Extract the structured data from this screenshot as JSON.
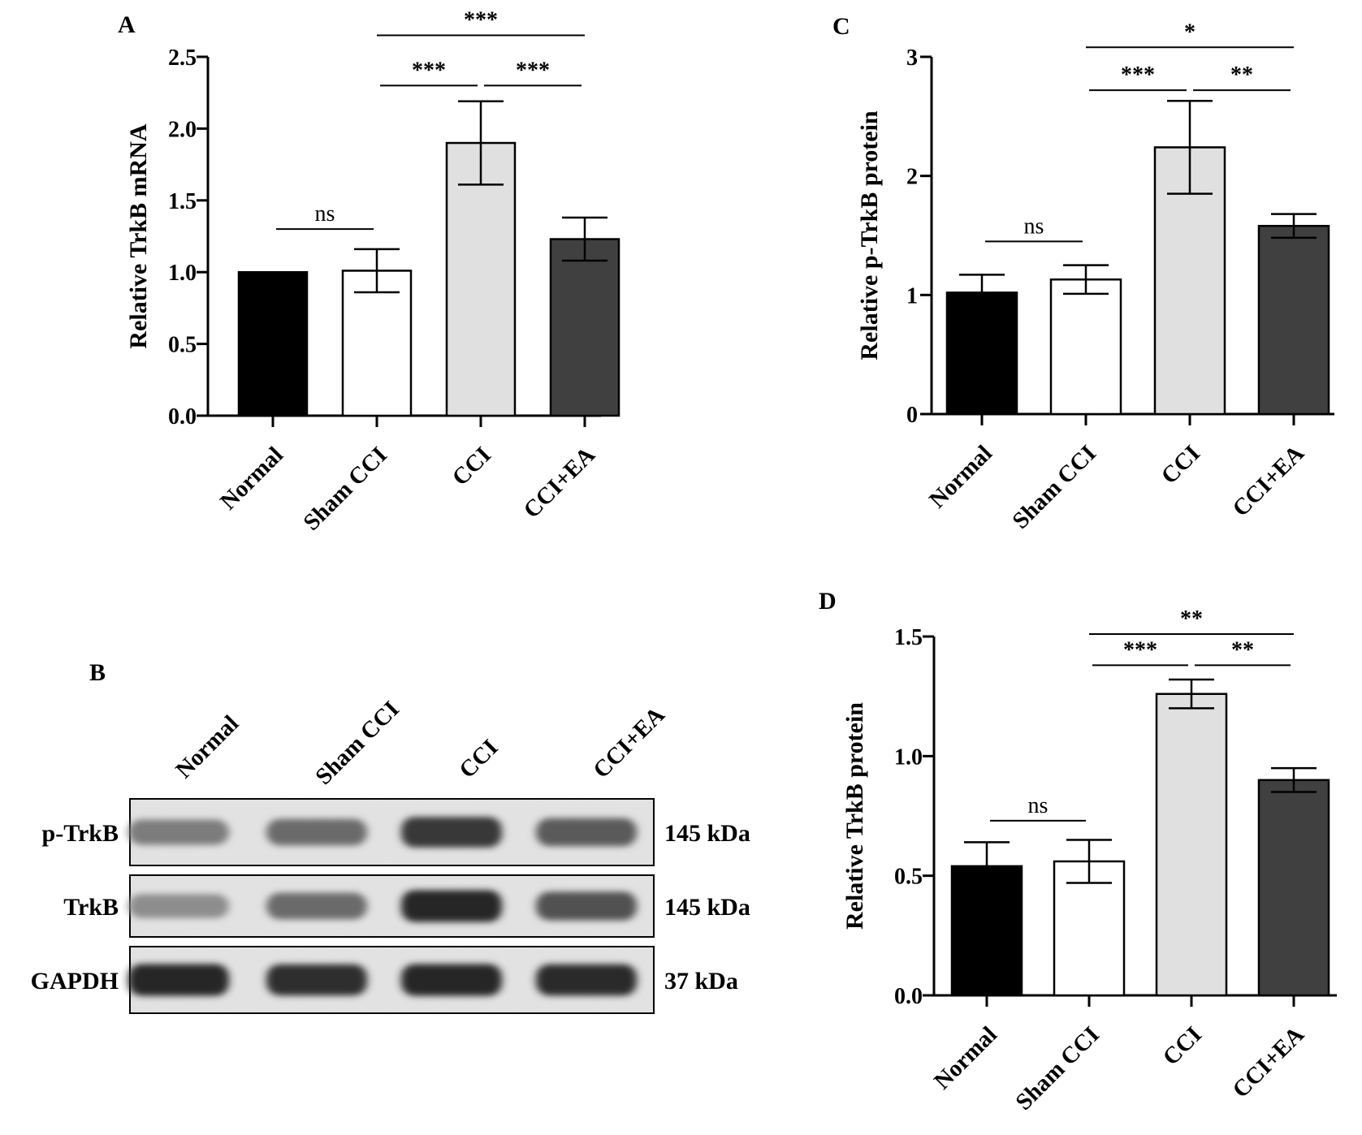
{
  "panels": {
    "A": {
      "letter": "A",
      "ylabel": "Relative TrkB mRNA",
      "ticks": [
        "0.0",
        "0.5",
        "1.0",
        "1.5",
        "2.0",
        "2.5"
      ]
    },
    "B": {
      "letter": "B",
      "lanes": [
        "Normal",
        "Sham CCI",
        "CCI",
        "CCI+EA"
      ],
      "rows": [
        {
          "label": "p-TrkB",
          "size": "145 kDa",
          "intensity": [
            0.45,
            0.55,
            0.85,
            0.65
          ]
        },
        {
          "label": "TrkB",
          "size": "145 kDa",
          "intensity": [
            0.35,
            0.55,
            0.95,
            0.7
          ]
        },
        {
          "label": "GAPDH",
          "size": "37 kDa",
          "intensity": [
            0.95,
            0.9,
            0.95,
            0.92
          ]
        }
      ]
    },
    "C": {
      "letter": "C",
      "ylabel": "Relative p-TrkB protein",
      "ticks": [
        "0",
        "1",
        "2",
        "3"
      ]
    },
    "D": {
      "letter": "D",
      "ylabel": "Relative TrkB protein",
      "ticks": [
        "0.0",
        "0.5",
        "1.0",
        "1.5"
      ]
    }
  },
  "colors": {
    "Normal": "#000000",
    "Sham CCI": "#ffffff",
    "CCI": "#e0e0e0",
    "CCI+EA": "#404040"
  },
  "chart_data": [
    {
      "panel": "A",
      "type": "bar",
      "categories": [
        "Normal",
        "Sham CCI",
        "CCI",
        "CCI+EA"
      ],
      "values": [
        1.0,
        1.01,
        1.9,
        1.23
      ],
      "errors": [
        0.0,
        0.15,
        0.29,
        0.15
      ],
      "ylabel": "Relative TrkB mRNA",
      "ylim": [
        0,
        2.5
      ],
      "significance": [
        {
          "from": 0,
          "to": 1,
          "label": "ns",
          "y": 1.3
        },
        {
          "from": 1,
          "to": 2,
          "label": "***",
          "y": 2.3
        },
        {
          "from": 2,
          "to": 3,
          "label": "***",
          "y": 2.3
        },
        {
          "from": 1,
          "to": 3,
          "label": "***",
          "y": 2.65
        }
      ]
    },
    {
      "panel": "C",
      "type": "bar",
      "categories": [
        "Normal",
        "Sham CCI",
        "CCI",
        "CCI+EA"
      ],
      "values": [
        1.02,
        1.13,
        2.24,
        1.58
      ],
      "errors": [
        0.15,
        0.12,
        0.39,
        0.1
      ],
      "ylabel": "Relative p-TrkB protein",
      "ylim": [
        0,
        3
      ],
      "significance": [
        {
          "from": 0,
          "to": 1,
          "label": "ns",
          "y": 1.45
        },
        {
          "from": 1,
          "to": 2,
          "label": "***",
          "y": 2.72
        },
        {
          "from": 2,
          "to": 3,
          "label": "**",
          "y": 2.72
        },
        {
          "from": 1,
          "to": 3,
          "label": "*",
          "y": 3.08
        }
      ]
    },
    {
      "panel": "D",
      "type": "bar",
      "categories": [
        "Normal",
        "Sham CCI",
        "CCI",
        "CCI+EA"
      ],
      "values": [
        0.54,
        0.56,
        1.26,
        0.9
      ],
      "errors": [
        0.1,
        0.09,
        0.06,
        0.05
      ],
      "ylabel": "Relative TrkB protein",
      "ylim": [
        0,
        1.5
      ],
      "significance": [
        {
          "from": 0,
          "to": 1,
          "label": "ns",
          "y": 0.73
        },
        {
          "from": 1,
          "to": 2,
          "label": "***",
          "y": 1.38
        },
        {
          "from": 2,
          "to": 3,
          "label": "**",
          "y": 1.38
        },
        {
          "from": 1,
          "to": 3,
          "label": "**",
          "y": 1.51
        }
      ]
    }
  ]
}
